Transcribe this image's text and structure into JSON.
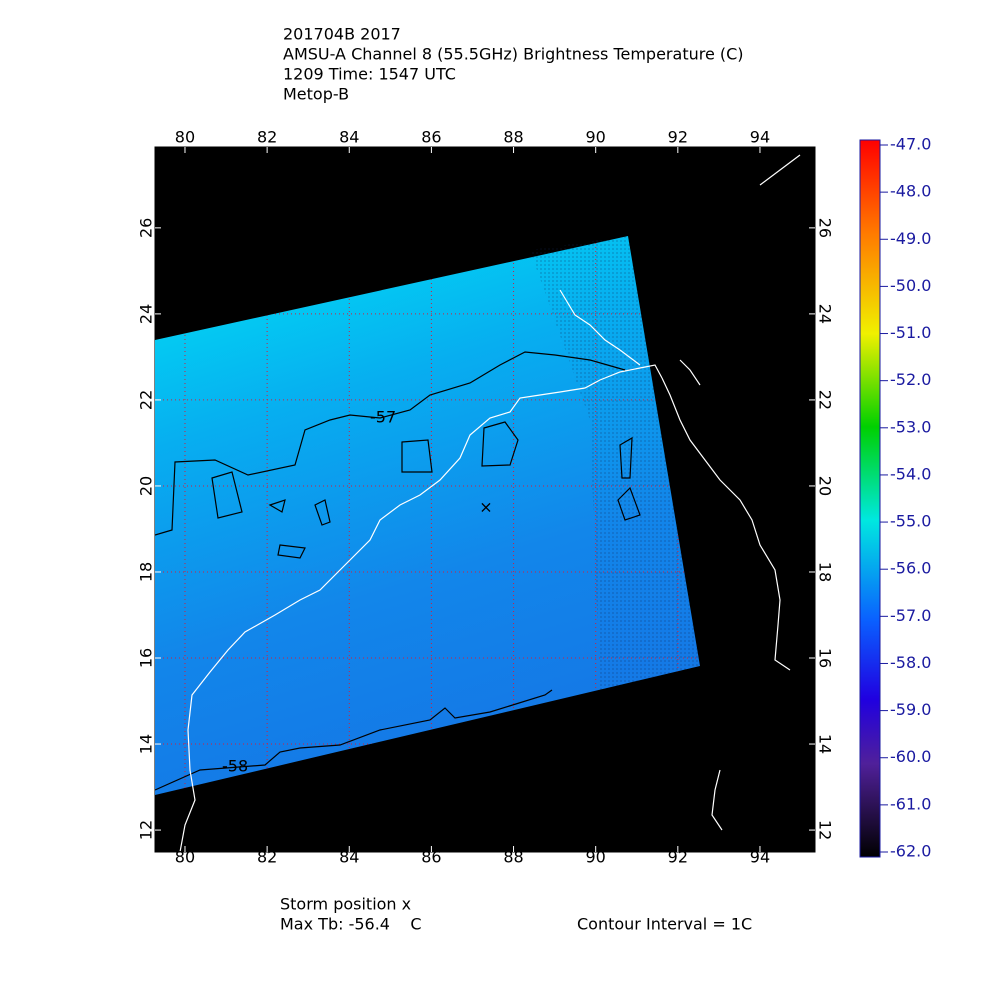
{
  "header": {
    "lines": [
      "201704B 2017",
      "AMSU-A Channel 8 (55.5GHz) Brightness Temperature (C)",
      "1209 Time: 1547 UTC",
      "Metop-B"
    ]
  },
  "map": {
    "lon_range": [
      79.27,
      95.34
    ],
    "lat_range": [
      11.49,
      27.88
    ],
    "lon_ticks": [
      80,
      82,
      84,
      86,
      88,
      90,
      92,
      94
    ],
    "lat_ticks": [
      12,
      14,
      16,
      18,
      20,
      22,
      24,
      26
    ],
    "contour_labels": [
      "-57",
      "-58"
    ]
  },
  "colorbar": {
    "range": [
      -62,
      -47
    ],
    "ticks": [
      {
        "value": -47,
        "label": "-47.0"
      },
      {
        "value": -48,
        "label": "-48.0"
      },
      {
        "value": -49,
        "label": "-49.0"
      },
      {
        "value": -50,
        "label": "-50.0"
      },
      {
        "value": -51,
        "label": "-51.0"
      },
      {
        "value": -52,
        "label": "-52.0"
      },
      {
        "value": -53,
        "label": "-53.0"
      },
      {
        "value": -54,
        "label": "-54.0"
      },
      {
        "value": -55,
        "label": "-55.0"
      },
      {
        "value": -56,
        "label": "-56.0"
      },
      {
        "value": -57,
        "label": "-57.0"
      },
      {
        "value": -58,
        "label": "-58.0"
      },
      {
        "value": -59,
        "label": "-59.0"
      },
      {
        "value": -60,
        "label": "-60.0"
      },
      {
        "value": -61,
        "label": "-61.0"
      },
      {
        "value": -62,
        "label": "-62.0"
      }
    ]
  },
  "footer": {
    "storm_position": "Storm position x",
    "max_tb": "Max Tb: -56.4    C",
    "contour_interval": "Contour Interval = 1C"
  }
}
